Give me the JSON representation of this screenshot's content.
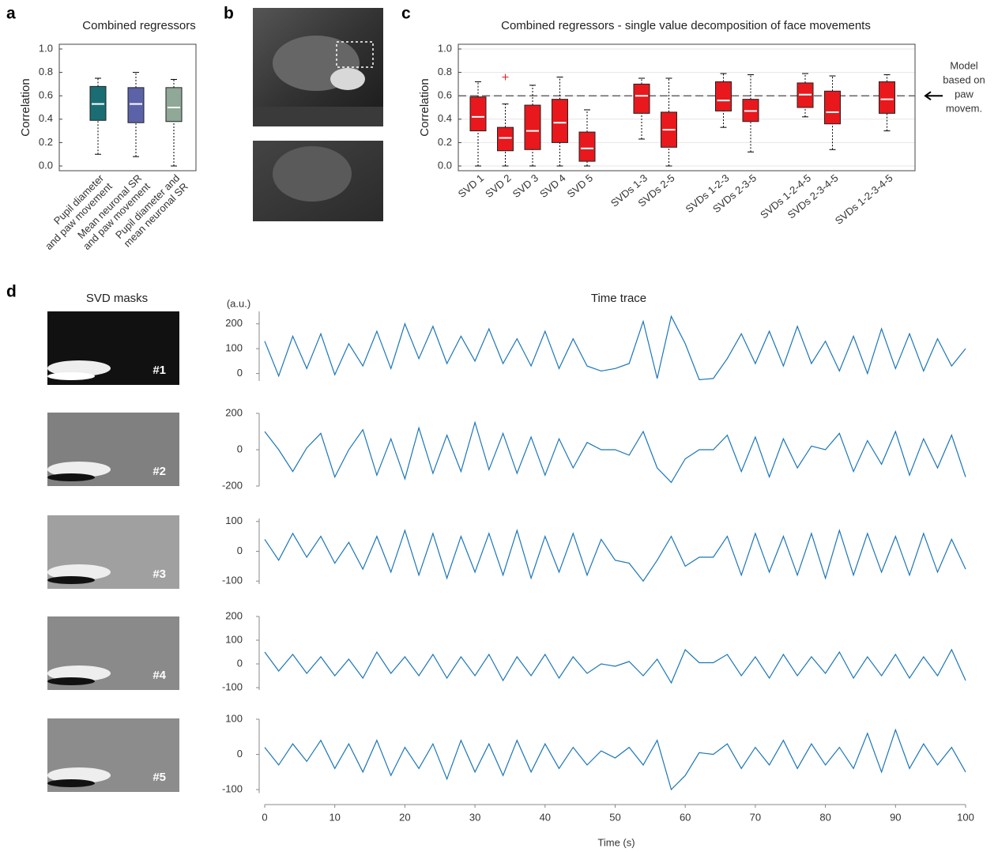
{
  "panel_labels": [
    "a",
    "b",
    "c",
    "d"
  ],
  "masks": {
    "title": "SVD masks",
    "labels": [
      "#1",
      "#2",
      "#3",
      "#4",
      "#5"
    ]
  },
  "chart_data": [
    {
      "type": "box",
      "title": "Combined regressors",
      "ylabel": "Correlation",
      "categories": [
        "Pupil diameter\nand paw movement",
        "Mean neuronal SR\nand paw movement",
        "Pupil diameter and\nmean neuronal SR"
      ],
      "whisker_low": [
        0.1,
        0.08,
        0.0
      ],
      "q1": [
        0.39,
        0.37,
        0.38
      ],
      "median": [
        0.53,
        0.53,
        0.5
      ],
      "q3": [
        0.68,
        0.67,
        0.67
      ],
      "whisker_high": [
        0.75,
        0.8,
        0.74
      ],
      "colors": [
        "#1a6e73",
        "#5b62a8",
        "#8fa898"
      ],
      "ylim": [
        0,
        1
      ],
      "yticks": [
        {
          "value": 0,
          "label": "0.0"
        },
        0.2,
        0.4,
        0.6,
        0.8,
        {
          "value": 1,
          "label": "1.0"
        }
      ],
      "grid": false
    },
    {
      "type": "box",
      "title": "Combined regressors - single value decomposition of face movements",
      "ylabel": "Correlation",
      "categories": [
        "SVD 1",
        "SVD 2",
        "SVD 3",
        "SVD 4",
        "SVD 5",
        "SVDs 1-3",
        "SVDs 2-5",
        "SVDs 1-2-3",
        "SVDs 2-3-5",
        "SVDs 1-2-4-5",
        "SVDs 2-3-4-5",
        "SVDs 1-2-3-4-5"
      ],
      "whisker_low": [
        0.0,
        0.0,
        0.0,
        0.0,
        0.0,
        0.23,
        0.0,
        0.33,
        0.12,
        0.42,
        0.14,
        0.3
      ],
      "q1": [
        0.3,
        0.13,
        0.14,
        0.2,
        0.04,
        0.45,
        0.16,
        0.47,
        0.38,
        0.5,
        0.36,
        0.45
      ],
      "median": [
        0.42,
        0.24,
        0.3,
        0.37,
        0.15,
        0.6,
        0.31,
        0.56,
        0.47,
        0.61,
        0.46,
        0.57
      ],
      "q3": [
        0.59,
        0.33,
        0.52,
        0.57,
        0.29,
        0.7,
        0.46,
        0.72,
        0.57,
        0.71,
        0.64,
        0.72
      ],
      "whisker_high": [
        0.72,
        0.53,
        0.69,
        0.76,
        0.48,
        0.75,
        0.75,
        0.79,
        0.78,
        0.79,
        0.77,
        0.78
      ],
      "outliers": [
        [],
        [
          0.76
        ],
        [],
        [],
        [],
        [],
        [],
        [],
        [],
        [],
        [],
        []
      ],
      "colors": [
        "#e8181c",
        "#e8181c",
        "#e8181c",
        "#e8181c",
        "#e8181c",
        "#e8181c",
        "#e8181c",
        "#e8181c",
        "#e8181c",
        "#e8181c",
        "#e8181c",
        "#e8181c"
      ],
      "reference_line": {
        "value": 0.6,
        "label": [
          "Model",
          "based on",
          "paw",
          "movem."
        ]
      },
      "ylim": [
        0,
        1
      ],
      "yticks": [
        {
          "value": 0,
          "label": "0.0"
        },
        0.2,
        0.4,
        0.6,
        0.8,
        {
          "value": 1,
          "label": "1.0"
        }
      ],
      "grid": true
    },
    {
      "type": "line",
      "title": "Time trace",
      "ylabel": "(a.u.)",
      "color": "#1b76b8",
      "x": [
        0,
        2,
        4,
        6,
        8,
        10,
        12,
        14,
        16,
        18,
        20,
        22,
        24,
        26,
        28,
        30,
        32,
        34,
        36,
        38,
        40,
        42,
        44,
        46,
        48,
        50,
        52,
        54,
        56,
        58,
        60,
        62,
        64,
        66,
        68,
        70,
        72,
        74,
        76,
        78,
        80,
        82,
        84,
        86,
        88,
        90,
        92,
        94,
        96,
        98,
        100
      ],
      "values": [
        130,
        -10,
        150,
        20,
        160,
        -5,
        120,
        30,
        170,
        20,
        200,
        60,
        190,
        40,
        150,
        50,
        180,
        40,
        140,
        30,
        170,
        20,
        140,
        30,
        10,
        20,
        40,
        210,
        -20,
        230,
        120,
        -25,
        -20,
        60,
        160,
        40,
        170,
        30,
        190,
        40,
        130,
        10,
        150,
        0,
        180,
        20,
        160,
        10,
        140,
        30,
        100
      ],
      "xlim": [
        0,
        100
      ],
      "ylim": [
        -30,
        250
      ],
      "yticks": [
        0,
        100,
        200
      ]
    },
    {
      "type": "line",
      "color": "#1b76b8",
      "x": [
        0,
        2,
        4,
        6,
        8,
        10,
        12,
        14,
        16,
        18,
        20,
        22,
        24,
        26,
        28,
        30,
        32,
        34,
        36,
        38,
        40,
        42,
        44,
        46,
        48,
        50,
        52,
        54,
        56,
        58,
        60,
        62,
        64,
        66,
        68,
        70,
        72,
        74,
        76,
        78,
        80,
        82,
        84,
        86,
        88,
        90,
        92,
        94,
        96,
        98,
        100
      ],
      "values": [
        100,
        0,
        -120,
        10,
        90,
        -150,
        0,
        110,
        -140,
        60,
        -160,
        120,
        -130,
        80,
        -120,
        150,
        -110,
        90,
        -130,
        70,
        -140,
        60,
        -100,
        40,
        0,
        0,
        -30,
        100,
        -100,
        -180,
        -50,
        0,
        0,
        80,
        -120,
        70,
        -150,
        60,
        -100,
        20,
        0,
        90,
        -120,
        50,
        -80,
        100,
        -140,
        60,
        -100,
        80,
        -150
      ],
      "xlim": [
        0,
        100
      ],
      "ylim": [
        -200,
        200
      ],
      "yticks": [
        -200,
        0,
        200
      ]
    },
    {
      "type": "line",
      "color": "#1b76b8",
      "x": [
        0,
        2,
        4,
        6,
        8,
        10,
        12,
        14,
        16,
        18,
        20,
        22,
        24,
        26,
        28,
        30,
        32,
        34,
        36,
        38,
        40,
        42,
        44,
        46,
        48,
        50,
        52,
        54,
        56,
        58,
        60,
        62,
        64,
        66,
        68,
        70,
        72,
        74,
        76,
        78,
        80,
        82,
        84,
        86,
        88,
        90,
        92,
        94,
        96,
        98,
        100
      ],
      "values": [
        40,
        -30,
        60,
        -20,
        50,
        -40,
        30,
        -60,
        50,
        -70,
        70,
        -80,
        60,
        -90,
        50,
        -70,
        60,
        -80,
        70,
        -90,
        50,
        -70,
        60,
        -80,
        40,
        -30,
        -40,
        -100,
        -30,
        50,
        -50,
        -20,
        -20,
        50,
        -80,
        60,
        -70,
        50,
        -80,
        60,
        -90,
        70,
        -80,
        60,
        -70,
        50,
        -80,
        60,
        -70,
        40,
        -60
      ],
      "xlim": [
        0,
        100
      ],
      "ylim": [
        -110,
        110
      ],
      "yticks": [
        -100,
        0,
        100
      ]
    },
    {
      "type": "line",
      "color": "#1b76b8",
      "x": [
        0,
        2,
        4,
        6,
        8,
        10,
        12,
        14,
        16,
        18,
        20,
        22,
        24,
        26,
        28,
        30,
        32,
        34,
        36,
        38,
        40,
        42,
        44,
        46,
        48,
        50,
        52,
        54,
        56,
        58,
        60,
        62,
        64,
        66,
        68,
        70,
        72,
        74,
        76,
        78,
        80,
        82,
        84,
        86,
        88,
        90,
        92,
        94,
        96,
        98,
        100
      ],
      "values": [
        50,
        -30,
        40,
        -40,
        30,
        -50,
        20,
        -60,
        50,
        -40,
        30,
        -50,
        40,
        -60,
        30,
        -50,
        40,
        -70,
        30,
        -50,
        40,
        -60,
        30,
        -40,
        0,
        -10,
        10,
        -50,
        20,
        -80,
        60,
        5,
        5,
        40,
        -50,
        30,
        -60,
        40,
        -50,
        30,
        -40,
        50,
        -60,
        30,
        -50,
        40,
        -60,
        30,
        -50,
        60,
        -70
      ],
      "xlim": [
        0,
        100
      ],
      "ylim": [
        -110,
        200
      ],
      "yticks": [
        -100,
        0,
        100,
        200
      ]
    },
    {
      "type": "line",
      "color": "#1b76b8",
      "xlabel": "Time (s)",
      "x": [
        0,
        2,
        4,
        6,
        8,
        10,
        12,
        14,
        16,
        18,
        20,
        22,
        24,
        26,
        28,
        30,
        32,
        34,
        36,
        38,
        40,
        42,
        44,
        46,
        48,
        50,
        52,
        54,
        56,
        58,
        60,
        62,
        64,
        66,
        68,
        70,
        72,
        74,
        76,
        78,
        80,
        82,
        84,
        86,
        88,
        90,
        92,
        94,
        96,
        98,
        100
      ],
      "values": [
        20,
        -30,
        30,
        -20,
        40,
        -40,
        30,
        -50,
        40,
        -60,
        20,
        -40,
        30,
        -70,
        40,
        -50,
        30,
        -60,
        40,
        -50,
        30,
        -40,
        20,
        -30,
        10,
        -10,
        20,
        -30,
        40,
        -100,
        -60,
        5,
        0,
        30,
        -40,
        20,
        -30,
        40,
        -40,
        30,
        -30,
        20,
        -40,
        60,
        -50,
        70,
        -40,
        30,
        -30,
        20,
        -50
      ],
      "xlim": [
        0,
        100
      ],
      "ylim": [
        -110,
        100
      ],
      "yticks": [
        -100,
        0,
        100
      ],
      "xticks": [
        0,
        10,
        20,
        30,
        40,
        50,
        60,
        70,
        80,
        90,
        100
      ]
    }
  ]
}
